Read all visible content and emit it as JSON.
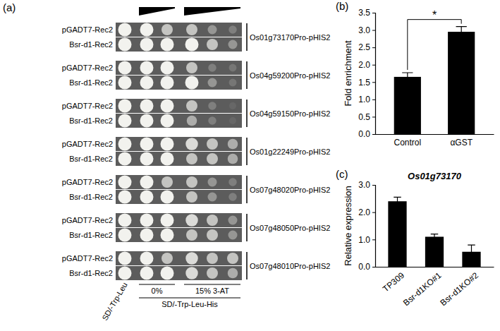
{
  "yeast_one_hybrid": {
    "panel": "(a)",
    "strains": [
      "pGADT7-Rec2",
      "Bsr-d1-Rec2"
    ],
    "constructs": [
      {
        "name": "Os01g73170Pro-pHIS2",
        "growth": [
          [
            3,
            3,
            2,
            2,
            1,
            0.5
          ],
          [
            3,
            3,
            3,
            3,
            2,
            1
          ]
        ]
      },
      {
        "name": "Os04g59200Pro-pHIS2",
        "growth": [
          [
            3,
            3,
            3,
            2,
            0.5,
            0.3
          ],
          [
            3,
            3,
            3,
            3,
            1,
            0.3
          ]
        ]
      },
      {
        "name": "Os04g59150Pro-pHIS2",
        "growth": [
          [
            3,
            3,
            3,
            2,
            0.5,
            0
          ],
          [
            3,
            3,
            3,
            1.5,
            0.5,
            0
          ]
        ]
      },
      {
        "name": "Os01g22249Pro-pHIS2",
        "growth": [
          [
            3,
            3,
            3,
            2.5,
            2,
            1.5
          ],
          [
            3,
            3,
            3,
            2,
            2,
            1.5
          ]
        ]
      },
      {
        "name": "Os07g48020Pro-pHIS2",
        "growth": [
          [
            3,
            3,
            2,
            2,
            1,
            0.5
          ],
          [
            3,
            3,
            3,
            2,
            1,
            0.5
          ]
        ]
      },
      {
        "name": "Os07g48050Pro-pHIS2",
        "growth": [
          [
            3,
            3,
            3,
            2.5,
            2,
            1
          ],
          [
            3,
            3,
            3,
            2,
            2,
            1
          ]
        ]
      },
      {
        "name": "Os07g48010Pro-pHIS2",
        "growth": [
          [
            3,
            3,
            2,
            2.5,
            2,
            2
          ],
          [
            3,
            3,
            3,
            2.5,
            2,
            1.5
          ]
        ]
      }
    ],
    "control_medium": "SD/-Trp-Leu",
    "selective_medium": "SD/-Trp-Leu-His",
    "conditions": [
      "0%",
      "15% 3-AT"
    ]
  },
  "chart_data": [
    {
      "type": "bar",
      "panel": "(b)",
      "y_label": "Fold enrichment",
      "categories": [
        "Control",
        "αGST"
      ],
      "values": [
        1.65,
        2.95
      ],
      "errors": [
        0.12,
        0.15
      ],
      "color": "#000000",
      "ylim": [
        0,
        3.5
      ],
      "yticks": [
        {
          "value": 0,
          "label": "0.0"
        },
        {
          "value": 0.5,
          "label": "0.5"
        },
        {
          "value": 1,
          "label": "1.0"
        },
        {
          "value": 1.5,
          "label": "1.5"
        },
        {
          "value": 2,
          "label": "2.0"
        },
        {
          "value": 2.5,
          "label": "2.5"
        },
        {
          "value": 3,
          "label": "3.0"
        },
        {
          "value": 3.5,
          "label": "3.5"
        }
      ],
      "annotations": [
        {
          "text": "*",
          "categories": [
            0,
            1
          ]
        }
      ]
    },
    {
      "type": "bar",
      "panel": "(c)",
      "title": "Os01g73170",
      "y_label": "Relative expression",
      "categories": [
        "TP309",
        "Bsr-d1KO#1",
        "Bsr-d1KO#2"
      ],
      "values": [
        2.4,
        1.1,
        0.55
      ],
      "errors": [
        0.15,
        0.1,
        0.25
      ],
      "color": "#000000",
      "ylim": [
        0,
        3
      ],
      "yticks": [
        {
          "value": 0,
          "label": "0.0"
        },
        {
          "value": 1,
          "label": "1.0"
        },
        {
          "value": 2,
          "label": "2.0"
        },
        {
          "value": 3,
          "label": "3.0"
        }
      ]
    }
  ]
}
